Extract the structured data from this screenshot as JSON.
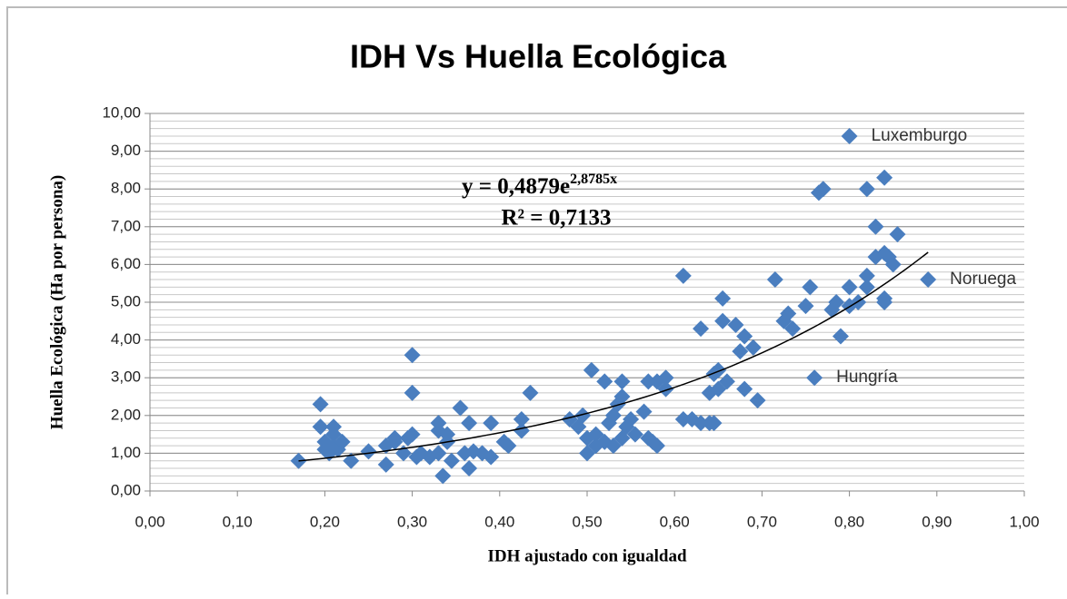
{
  "chart_data": {
    "type": "scatter",
    "title": "IDH Vs Huella Ecológica",
    "x_label": "IDH ajustado con igualdad",
    "y_label": "Huella Ecológica (Ha por persona)",
    "color": "#4a7ebf",
    "grid": true,
    "minor_grid_step": 0.2,
    "xlim": [
      0,
      1
    ],
    "ylim": [
      0,
      10
    ],
    "xticks": [
      {
        "value": 0,
        "label": "0,00"
      },
      {
        "value": 0.1,
        "label": "0,10"
      },
      {
        "value": 0.2,
        "label": "0,20"
      },
      {
        "value": 0.3,
        "label": "0,30"
      },
      {
        "value": 0.4,
        "label": "0,40"
      },
      {
        "value": 0.5,
        "label": "0,50"
      },
      {
        "value": 0.6,
        "label": "0,60"
      },
      {
        "value": 0.7,
        "label": "0,70"
      },
      {
        "value": 0.8,
        "label": "0,80"
      },
      {
        "value": 0.9,
        "label": "0,90"
      },
      {
        "value": 1,
        "label": "1,00"
      }
    ],
    "yticks": [
      {
        "value": 0,
        "label": "0,00"
      },
      {
        "value": 1,
        "label": "1,00"
      },
      {
        "value": 2,
        "label": "2,00"
      },
      {
        "value": 3,
        "label": "3,00"
      },
      {
        "value": 4,
        "label": "4,00"
      },
      {
        "value": 5,
        "label": "5,00"
      },
      {
        "value": 6,
        "label": "6,00"
      },
      {
        "value": 7,
        "label": "7,00"
      },
      {
        "value": 8,
        "label": "8,00"
      },
      {
        "value": 9,
        "label": "9,00"
      },
      {
        "value": 10,
        "label": "10,00"
      }
    ],
    "x": [
      0.17,
      0.195,
      0.195,
      0.2,
      0.2,
      0.205,
      0.21,
      0.21,
      0.21,
      0.215,
      0.22,
      0.23,
      0.25,
      0.27,
      0.27,
      0.28,
      0.28,
      0.29,
      0.295,
      0.3,
      0.3,
      0.3,
      0.305,
      0.31,
      0.32,
      0.33,
      0.33,
      0.33,
      0.335,
      0.34,
      0.34,
      0.345,
      0.355,
      0.36,
      0.365,
      0.365,
      0.37,
      0.38,
      0.39,
      0.39,
      0.405,
      0.41,
      0.425,
      0.425,
      0.435,
      0.48,
      0.49,
      0.495,
      0.5,
      0.5,
      0.505,
      0.51,
      0.51,
      0.52,
      0.52,
      0.525,
      0.53,
      0.53,
      0.535,
      0.54,
      0.54,
      0.54,
      0.545,
      0.55,
      0.555,
      0.565,
      0.57,
      0.57,
      0.575,
      0.58,
      0.58,
      0.59,
      0.59,
      0.61,
      0.61,
      0.62,
      0.63,
      0.63,
      0.64,
      0.64,
      0.645,
      0.645,
      0.65,
      0.65,
      0.655,
      0.655,
      0.66,
      0.67,
      0.675,
      0.68,
      0.68,
      0.69,
      0.695,
      0.715,
      0.725,
      0.73,
      0.735,
      0.75,
      0.755,
      0.765,
      0.77,
      0.78,
      0.785,
      0.79,
      0.8,
      0.8,
      0.81,
      0.82,
      0.82,
      0.82,
      0.83,
      0.83,
      0.84,
      0.84,
      0.84,
      0.84,
      0.845,
      0.85,
      0.855
    ],
    "values": [
      0.8,
      2.3,
      1.7,
      1.1,
      1.3,
      1.0,
      1.2,
      1.5,
      1.7,
      1.1,
      1.3,
      0.8,
      1.05,
      1.2,
      0.7,
      1.3,
      1.4,
      1.0,
      1.4,
      1.5,
      2.6,
      3.6,
      0.9,
      1.0,
      0.9,
      1.0,
      1.8,
      1.6,
      0.4,
      1.3,
      1.5,
      0.8,
      2.2,
      1.0,
      0.6,
      1.8,
      1.05,
      1.0,
      0.9,
      1.8,
      1.3,
      1.2,
      1.6,
      1.9,
      2.6,
      1.9,
      1.7,
      2.0,
      1.0,
      1.4,
      3.2,
      1.2,
      1.5,
      1.3,
      2.9,
      1.8,
      1.2,
      2.0,
      2.3,
      2.5,
      2.9,
      1.4,
      1.7,
      1.9,
      1.5,
      2.1,
      1.4,
      2.9,
      1.3,
      1.2,
      2.9,
      2.7,
      3.0,
      5.7,
      1.9,
      1.9,
      1.8,
      4.3,
      1.8,
      2.6,
      1.8,
      3.1,
      2.7,
      3.2,
      5.1,
      4.5,
      2.9,
      4.4,
      3.7,
      2.7,
      4.1,
      3.8,
      2.4,
      5.6,
      4.5,
      4.7,
      4.3,
      4.9,
      5.4,
      7.9,
      8.0,
      4.8,
      5.0,
      4.1,
      5.4,
      4.9,
      5.0,
      5.4,
      5.7,
      8.0,
      7.0,
      6.2,
      5.1,
      5.0,
      6.3,
      8.3,
      6.2,
      6.0,
      6.8
    ],
    "annotations": [
      {
        "text": "Luxemburgo",
        "x": 0.8,
        "y": 9.4
      },
      {
        "text": "Noruega",
        "x": 0.89,
        "y": 5.6
      },
      {
        "text": "Hungría",
        "x": 0.76,
        "y": 3.0
      }
    ],
    "trendline": {
      "equation": "y = 0,4879e",
      "exponent": "2,8785x",
      "r2": "R² = 0,7133",
      "a": 0.4879,
      "b": 2.8785,
      "x_start": 0.17,
      "x_end": 0.89
    }
  }
}
